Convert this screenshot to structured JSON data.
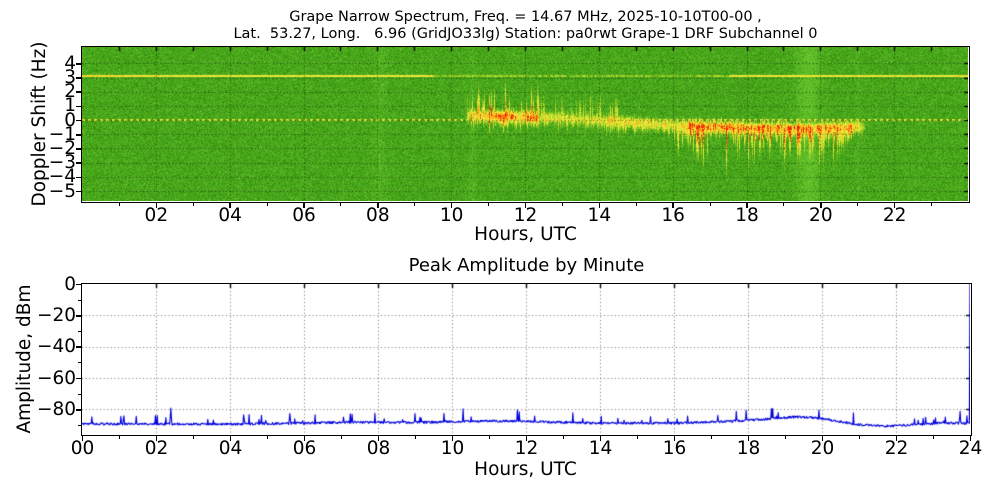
{
  "figure": {
    "suptitle_line1": "Grape Narrow Spectrum, Freq. = 14.67 MHz, 2025-10-10T00-00 ,",
    "suptitle_line2": "Lat.  53.27, Long.   6.96 (GridJO33lg) Station: pa0rwt Grape-1 DRF Subchannel 0",
    "background_color": "#ffffff"
  },
  "chart_data": [
    {
      "type": "heatmap",
      "name": "doppler-spectrogram",
      "xlabel": "Hours, UTC",
      "ylabel": "Doppler Shift (Hz)",
      "xlim": [
        0,
        24
      ],
      "ylim": [
        -5.7,
        5.15
      ],
      "xtick_hours": [
        2,
        4,
        6,
        8,
        10,
        12,
        14,
        16,
        18,
        20,
        22
      ],
      "xtick_labels": [
        "02",
        "04",
        "06",
        "08",
        "10",
        "12",
        "14",
        "16",
        "18",
        "20",
        "22"
      ],
      "ytick_values": [
        4,
        3,
        2,
        1,
        0,
        -1,
        -2,
        -3,
        -4,
        -5
      ],
      "ytick_labels": [
        "4",
        "3",
        "2",
        "1",
        "0",
        "−1",
        "−2",
        "−3",
        "−4",
        "−5"
      ],
      "grid": "dotted black at integer Hz and every 2 hours",
      "palette": {
        "noise_dark": "#288a08",
        "noise_light": "#69c52e",
        "weak": "#b4d820",
        "medium": "#f2ee3c",
        "strong": "#ffaa18",
        "peak": "#e62000"
      },
      "features": {
        "carrier_line": {
          "hz": 3.08,
          "style": "solid",
          "color": "yellow",
          "note": "continuous horizontal line, fainter 10h-17h"
        },
        "zero_line": {
          "hz": 0.0,
          "style": "dotted",
          "color": "yellow",
          "note": "dashed yellow reference at 0 Hz across full day"
        },
        "main_band": {
          "note": "strong Doppler trace near 0 Hz from ~10.3h to ~21.3h, yellow with orange-red cores",
          "start_hour": 10.3,
          "end_hour": 21.35,
          "center_hz_anchors": [
            [
              10.35,
              0.35
            ],
            [
              11,
              0.3
            ],
            [
              12,
              0.25
            ],
            [
              12.8,
              0.15
            ],
            [
              13.5,
              0.1
            ],
            [
              14.5,
              -0.1
            ],
            [
              15.5,
              -0.3
            ],
            [
              16.5,
              -0.45
            ],
            [
              18,
              -0.55
            ],
            [
              19.5,
              -0.6
            ],
            [
              20.5,
              -0.55
            ],
            [
              21.3,
              -0.45
            ]
          ],
          "hot_intervals": [
            [
              11,
              12.35
            ],
            [
              16.4,
              19.8
            ]
          ],
          "weak_interval": [
            12.35,
            14.2
          ],
          "upward_spikes_until": 14.5,
          "upward_spike_extent_hz": 1.6,
          "downward_blob_interval": [
            16,
            20.7
          ],
          "downward_extent_hz": -2.1
        },
        "vertical_bands": [
          {
            "hour": 19.67,
            "half_width_h": 0.22,
            "strength": 0.17,
            "note": "bright full-height stripe"
          },
          {
            "hour": 8.05,
            "half_width_h": 0.12,
            "strength": 0.07
          },
          {
            "hour": 10.58,
            "half_width_h": 0.06,
            "strength": 0.06
          },
          {
            "hour": 21.0,
            "half_width_h": 0.05,
            "strength": 0.05
          }
        ]
      }
    },
    {
      "type": "line",
      "name": "peak-amplitude-by-minute",
      "title": "Peak Amplitude by Minute",
      "xlabel": "Hours, UTC",
      "ylabel": "Amplitude, dBm",
      "xlim": [
        0,
        24
      ],
      "ylim": [
        -95.7,
        0
      ],
      "xtick_hours": [
        0,
        2,
        4,
        6,
        8,
        10,
        12,
        14,
        16,
        18,
        20,
        22,
        24
      ],
      "xtick_labels": [
        "00",
        "02",
        "04",
        "06",
        "08",
        "10",
        "12",
        "14",
        "16",
        "18",
        "20",
        "22",
        "24"
      ],
      "ytick_values": [
        0,
        -20,
        -40,
        -60,
        -80
      ],
      "ytick_labels": [
        "0",
        "−20",
        "−40",
        "−60",
        "−80"
      ],
      "line_color": "#0000dd",
      "grid": "dotted",
      "series": [
        {
          "name": "peak amplitude",
          "points_per_hour": 60,
          "baseline_anchors": [
            [
              0,
              -89.3
            ],
            [
              2,
              -89.3
            ],
            [
              4,
              -89.4
            ],
            [
              6,
              -88.8
            ],
            [
              7,
              -88.2
            ],
            [
              9,
              -88.3
            ],
            [
              10.5,
              -87.6
            ],
            [
              11.5,
              -87.3
            ],
            [
              12.5,
              -88.0
            ],
            [
              14,
              -88.8
            ],
            [
              16,
              -88.8
            ],
            [
              17.5,
              -87.6
            ],
            [
              18.5,
              -86.2
            ],
            [
              19.3,
              -84.8
            ],
            [
              19.8,
              -85.3
            ],
            [
              20.3,
              -87.0
            ],
            [
              21,
              -89.8
            ],
            [
              21.8,
              -90.6
            ],
            [
              22.5,
              -89.8
            ],
            [
              23.3,
              -88.6
            ],
            [
              23.9,
              -89.0
            ]
          ],
          "spike_max_dbm": -79,
          "typical_spike_db": 4,
          "final_point": [
            24,
            0
          ],
          "note": "noisy floor near -90 dBm with minute spikes; broad hump to ~-84 dBm near 19h; full-scale spike to 0 dBm at right edge"
        }
      ]
    }
  ]
}
